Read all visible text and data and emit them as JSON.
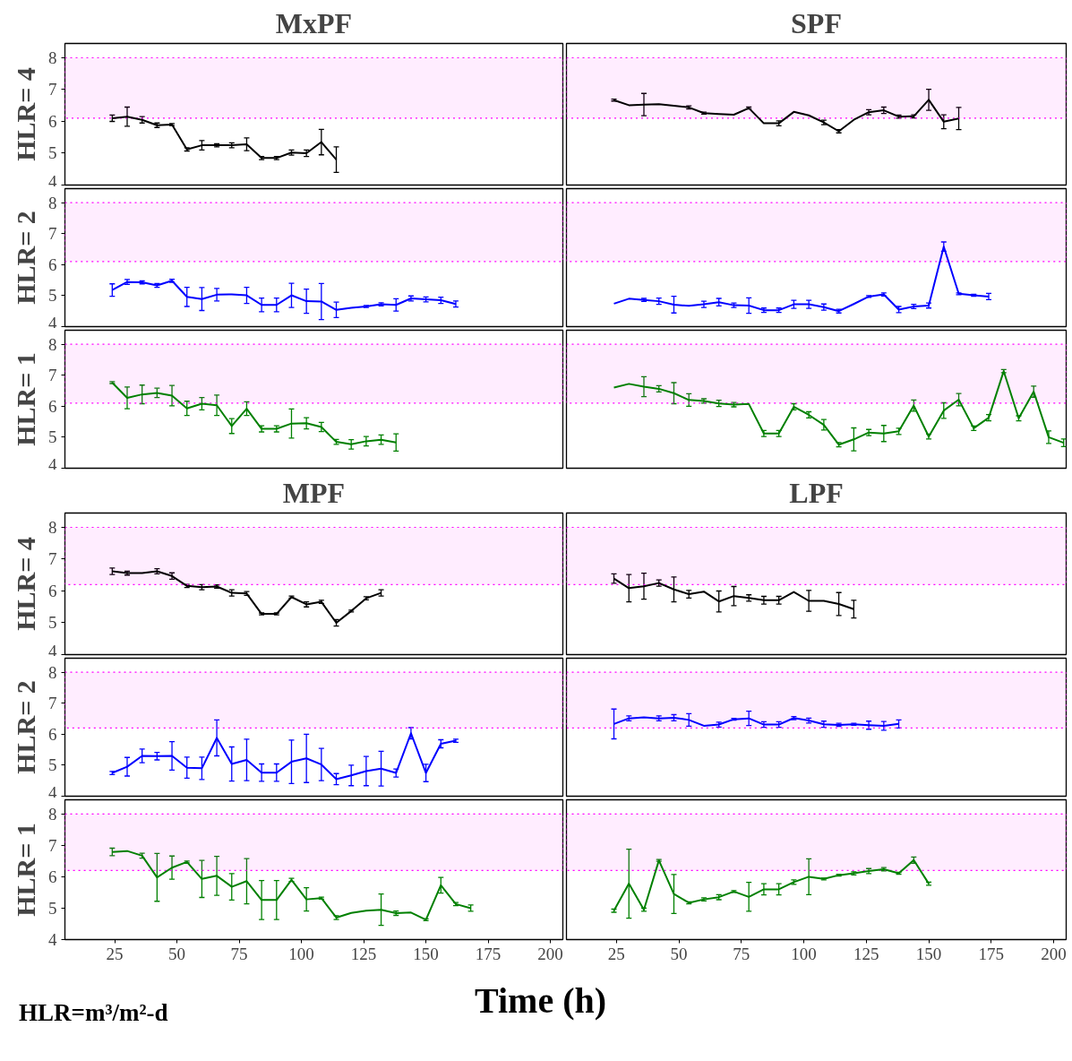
{
  "chart_data": [
    {
      "type": "line",
      "title": "MxPF",
      "ylabel": "HLR= 4",
      "xlim": [
        5,
        205
      ],
      "ylim": [
        4,
        8.45
      ],
      "xticks": [
        25,
        50,
        75,
        100,
        125,
        150,
        175,
        200
      ],
      "yticks": [
        4,
        5,
        6,
        7,
        8
      ],
      "tick_labels": "y",
      "bands": [
        {
          "axis": "y",
          "from": 6.1,
          "to": 8,
          "color": "#ff00ff"
        }
      ],
      "x": [
        24,
        30,
        36,
        42,
        48,
        54,
        60,
        66,
        72,
        78,
        84,
        90,
        96,
        102,
        108,
        114
      ],
      "series": [
        {
          "color": "#000000",
          "values": [
            6.1,
            6.15,
            6.05,
            5.88,
            5.9,
            5.12,
            5.25,
            5.25,
            5.25,
            5.28,
            4.85,
            4.85,
            5.02,
            5.0,
            5.35,
            4.8
          ],
          "errors": [
            0.1,
            0.3,
            0.1,
            0.07,
            0.03,
            0.05,
            0.15,
            0.05,
            0.08,
            0.2,
            0.05,
            0.05,
            0.08,
            0.1,
            0.4,
            0.4
          ]
        }
      ]
    },
    {
      "type": "line",
      "title": "SPF",
      "xlim": [
        5,
        205
      ],
      "ylim": [
        4,
        8.45
      ],
      "xticks": [
        25,
        50,
        75,
        100,
        125,
        150,
        175,
        200
      ],
      "yticks": [
        4,
        5,
        6,
        7,
        8
      ],
      "tick_labels": false,
      "bands": [
        {
          "axis": "y",
          "from": 6.1,
          "to": 8,
          "color": "#ff00ff"
        }
      ],
      "x": [
        24,
        30,
        36,
        42,
        48,
        54,
        60,
        66,
        72,
        78,
        84,
        90,
        96,
        102,
        108,
        114,
        120,
        126,
        132,
        138,
        144,
        150,
        156,
        162
      ],
      "series": [
        {
          "color": "#000000",
          "values": [
            6.67,
            6.51,
            6.53,
            6.54,
            6.49,
            6.44,
            6.26,
            6.23,
            6.21,
            6.42,
            5.94,
            5.94,
            6.3,
            6.19,
            5.97,
            5.69,
            6.05,
            6.29,
            6.35,
            6.15,
            6.16,
            6.68,
            5.99,
            6.09
          ],
          "errors": [
            0.03,
            null,
            0.35,
            null,
            null,
            0.05,
            0.03,
            null,
            null,
            0.03,
            null,
            0.08,
            null,
            null,
            0.07,
            0.05,
            null,
            0.08,
            0.1,
            0.05,
            0.05,
            0.33,
            0.22,
            0.35
          ]
        }
      ]
    },
    {
      "type": "line",
      "ylabel": "HLR= 2",
      "xlim": [
        5,
        205
      ],
      "ylim": [
        4,
        8.45
      ],
      "xticks": [
        25,
        50,
        75,
        100,
        125,
        150,
        175,
        200
      ],
      "yticks": [
        4,
        5,
        6,
        7,
        8
      ],
      "tick_labels": "y",
      "bands": [
        {
          "axis": "y",
          "from": 6.1,
          "to": 8,
          "color": "#ff00ff"
        }
      ],
      "x": [
        24,
        30,
        36,
        42,
        48,
        54,
        60,
        66,
        72,
        78,
        84,
        90,
        96,
        102,
        108,
        114,
        120,
        126,
        132,
        138,
        144,
        150,
        156,
        162
      ],
      "series": [
        {
          "color": "#0000ff",
          "values": [
            5.18,
            5.44,
            5.43,
            5.33,
            5.48,
            4.96,
            4.89,
            5.03,
            5.04,
            5.01,
            4.7,
            4.7,
            5.01,
            4.82,
            4.81,
            4.54,
            4.61,
            4.65,
            4.72,
            4.7,
            4.91,
            4.88,
            4.85,
            4.73
          ],
          "errors": [
            0.2,
            0.08,
            0.05,
            0.06,
            0.05,
            0.31,
            0.37,
            0.2,
            null,
            0.26,
            0.22,
            0.22,
            0.39,
            0.39,
            0.58,
            0.25,
            null,
            0.03,
            0.05,
            0.2,
            0.08,
            0.08,
            0.1,
            0.1
          ]
        }
      ]
    },
    {
      "type": "line",
      "xlim": [
        5,
        205
      ],
      "ylim": [
        4,
        8.45
      ],
      "xticks": [
        25,
        50,
        75,
        100,
        125,
        150,
        175,
        200
      ],
      "yticks": [
        4,
        5,
        6,
        7,
        8
      ],
      "tick_labels": false,
      "bands": [
        {
          "axis": "y",
          "from": 6.1,
          "to": 8,
          "color": "#ff00ff"
        }
      ],
      "x": [
        24,
        30,
        36,
        42,
        48,
        54,
        60,
        66,
        72,
        78,
        84,
        90,
        96,
        102,
        108,
        114,
        120,
        126,
        132,
        138,
        144,
        150,
        156,
        162,
        168,
        174
      ],
      "series": [
        {
          "color": "#0000ff",
          "values": [
            4.74,
            4.9,
            4.86,
            4.82,
            4.71,
            4.67,
            4.72,
            4.79,
            4.69,
            4.68,
            4.53,
            4.53,
            4.72,
            4.72,
            4.63,
            4.5,
            4.73,
            4.97,
            5.04,
            4.55,
            4.65,
            4.68,
            6.58,
            5.06,
            5.01,
            4.97
          ],
          "errors": [
            null,
            null,
            0.05,
            0.1,
            0.27,
            null,
            0.1,
            0.12,
            0.07,
            0.25,
            0.07,
            0.07,
            0.13,
            0.13,
            0.1,
            0.06,
            null,
            0.03,
            0.05,
            0.1,
            0.07,
            0.08,
            0.15,
            0.03,
            0.03,
            0.1
          ]
        }
      ]
    },
    {
      "type": "line",
      "ylabel": "HLR= 1",
      "xlim": [
        5,
        205
      ],
      "ylim": [
        4,
        8.45
      ],
      "xticks": [
        25,
        50,
        75,
        100,
        125,
        150,
        175,
        200
      ],
      "yticks": [
        4,
        5,
        6,
        7,
        8
      ],
      "tick_labels": "y",
      "bands": [
        {
          "axis": "y",
          "from": 6.1,
          "to": 8,
          "color": "#ff00ff"
        }
      ],
      "x": [
        24,
        30,
        36,
        42,
        48,
        54,
        60,
        66,
        72,
        78,
        84,
        90,
        96,
        102,
        108,
        114,
        120,
        126,
        132,
        138
      ],
      "series": [
        {
          "color": "#008000",
          "values": [
            6.76,
            6.27,
            6.38,
            6.43,
            6.34,
            5.93,
            6.08,
            6.03,
            5.36,
            5.92,
            5.27,
            5.27,
            5.44,
            5.45,
            5.33,
            4.85,
            4.77,
            4.87,
            4.92,
            4.83
          ],
          "errors": [
            0.03,
            0.35,
            0.3,
            0.15,
            0.33,
            0.23,
            0.2,
            0.33,
            0.24,
            0.22,
            0.1,
            0.1,
            0.47,
            0.18,
            0.15,
            0.08,
            0.15,
            0.15,
            0.15,
            0.28
          ]
        }
      ]
    },
    {
      "type": "line",
      "xlim": [
        5,
        205
      ],
      "ylim": [
        4,
        8.45
      ],
      "xticks": [
        25,
        50,
        75,
        100,
        125,
        150,
        175,
        200
      ],
      "yticks": [
        4,
        5,
        6,
        7,
        8
      ],
      "tick_labels": false,
      "bands": [
        {
          "axis": "y",
          "from": 6.1,
          "to": 8,
          "color": "#ff00ff"
        }
      ],
      "x": [
        24,
        30,
        36,
        42,
        48,
        54,
        60,
        66,
        72,
        78,
        84,
        90,
        96,
        102,
        108,
        114,
        120,
        126,
        132,
        138,
        144,
        150,
        156,
        162,
        168,
        174,
        180,
        186,
        192,
        198,
        204
      ],
      "series": [
        {
          "color": "#008000",
          "values": [
            6.6,
            6.72,
            6.63,
            6.56,
            6.42,
            6.2,
            6.17,
            6.09,
            6.05,
            6.07,
            5.12,
            5.12,
            5.98,
            5.72,
            5.4,
            4.76,
            4.93,
            5.15,
            5.12,
            5.19,
            6.02,
            5.02,
            5.86,
            6.21,
            5.29,
            5.63,
            7.13,
            5.61,
            6.47,
            5.0,
            4.82
          ],
          "errors": [
            null,
            null,
            0.32,
            0.1,
            0.34,
            0.2,
            0.07,
            0.1,
            0.07,
            null,
            0.1,
            0.1,
            0.1,
            0.1,
            0.17,
            0.07,
            0.37,
            0.1,
            0.26,
            0.1,
            0.18,
            0.08,
            0.25,
            0.2,
            0.07,
            0.1,
            0.05,
            0.08,
            0.18,
            0.2,
            0.12
          ]
        }
      ]
    },
    {
      "type": "line",
      "title": "MPF",
      "ylabel": "HLR= 4",
      "xlim": [
        5,
        205
      ],
      "ylim": [
        4,
        8.45
      ],
      "xticks": [
        25,
        50,
        75,
        100,
        125,
        150,
        175,
        200
      ],
      "yticks": [
        4,
        5,
        6,
        7,
        8
      ],
      "tick_labels": "y",
      "bands": [
        {
          "axis": "y",
          "from": 6.2,
          "to": 8,
          "color": "#ff00ff"
        }
      ],
      "x": [
        24,
        30,
        36,
        42,
        48,
        54,
        60,
        66,
        72,
        78,
        84,
        90,
        96,
        102,
        108,
        114,
        120,
        126,
        132
      ],
      "series": [
        {
          "color": "#000000",
          "values": [
            6.62,
            6.56,
            6.56,
            6.62,
            6.47,
            6.16,
            6.12,
            6.14,
            5.94,
            5.92,
            5.28,
            5.28,
            5.81,
            5.58,
            5.66,
            5.0,
            5.37,
            5.77,
            5.94
          ],
          "errors": [
            0.1,
            0.06,
            null,
            0.08,
            0.1,
            0.05,
            0.08,
            0.05,
            0.1,
            0.06,
            0.03,
            0.03,
            0.03,
            0.08,
            0.05,
            0.1,
            0.03,
            0.05,
            0.1
          ]
        }
      ]
    },
    {
      "type": "line",
      "title": "LPF",
      "xlim": [
        5,
        205
      ],
      "ylim": [
        4,
        8.45
      ],
      "xticks": [
        25,
        50,
        75,
        100,
        125,
        150,
        175,
        200
      ],
      "yticks": [
        4,
        5,
        6,
        7,
        8
      ],
      "tick_labels": false,
      "bands": [
        {
          "axis": "y",
          "from": 6.2,
          "to": 8,
          "color": "#ff00ff"
        }
      ],
      "x": [
        24,
        30,
        36,
        42,
        48,
        54,
        60,
        66,
        72,
        78,
        84,
        90,
        96,
        102,
        108,
        114,
        120
      ],
      "series": [
        {
          "color": "#000000",
          "values": [
            6.39,
            6.09,
            6.15,
            6.25,
            6.05,
            5.9,
            5.98,
            5.67,
            5.84,
            5.78,
            5.71,
            5.71,
            5.97,
            5.69,
            5.69,
            5.59,
            5.43
          ],
          "errors": [
            0.15,
            0.43,
            0.41,
            0.1,
            0.39,
            0.12,
            null,
            0.33,
            0.3,
            0.1,
            0.12,
            0.12,
            null,
            0.33,
            null,
            0.36,
            0.28
          ]
        }
      ]
    },
    {
      "type": "line",
      "ylabel": "HLR= 2",
      "xlim": [
        5,
        205
      ],
      "ylim": [
        4,
        8.45
      ],
      "xticks": [
        25,
        50,
        75,
        100,
        125,
        150,
        175,
        200
      ],
      "yticks": [
        4,
        5,
        6,
        7,
        8
      ],
      "tick_labels": "y",
      "bands": [
        {
          "axis": "y",
          "from": 6.2,
          "to": 8,
          "color": "#ff00ff"
        }
      ],
      "x": [
        24,
        30,
        36,
        42,
        48,
        54,
        60,
        66,
        72,
        78,
        84,
        90,
        96,
        102,
        108,
        114,
        120,
        126,
        132,
        138,
        144,
        150,
        156,
        162
      ],
      "series": [
        {
          "color": "#0000ff",
          "values": [
            4.75,
            4.95,
            5.3,
            5.29,
            5.3,
            4.92,
            4.9,
            5.88,
            5.04,
            5.17,
            4.76,
            4.76,
            5.11,
            5.22,
            5.02,
            4.55,
            4.67,
            4.81,
            4.89,
            4.75,
            6.03,
            4.75,
            5.69,
            5.79
          ],
          "errors": [
            0.05,
            0.3,
            0.22,
            0.12,
            0.46,
            0.34,
            0.36,
            0.58,
            0.55,
            0.67,
            0.28,
            0.28,
            0.7,
            0.78,
            0.52,
            0.18,
            0.33,
            0.47,
            0.56,
            0.13,
            0.18,
            0.28,
            0.13,
            0.05
          ]
        }
      ]
    },
    {
      "type": "line",
      "xlim": [
        5,
        205
      ],
      "ylim": [
        4,
        8.45
      ],
      "xticks": [
        25,
        50,
        75,
        100,
        125,
        150,
        175,
        200
      ],
      "yticks": [
        4,
        5,
        6,
        7,
        8
      ],
      "tick_labels": false,
      "bands": [
        {
          "axis": "y",
          "from": 6.2,
          "to": 8,
          "color": "#ff00ff"
        }
      ],
      "x": [
        24,
        30,
        36,
        42,
        48,
        54,
        60,
        66,
        72,
        78,
        84,
        90,
        96,
        102,
        108,
        114,
        120,
        126,
        132,
        138
      ],
      "series": [
        {
          "color": "#0000ff",
          "values": [
            6.33,
            6.51,
            6.54,
            6.51,
            6.53,
            6.46,
            6.27,
            6.31,
            6.48,
            6.51,
            6.31,
            6.31,
            6.52,
            6.44,
            6.32,
            6.3,
            6.32,
            6.29,
            6.27,
            6.33
          ],
          "errors": [
            0.48,
            0.08,
            null,
            0.08,
            0.1,
            0.2,
            null,
            0.08,
            0.03,
            0.23,
            0.09,
            0.09,
            0.05,
            0.08,
            0.1,
            0.05,
            0.03,
            0.13,
            0.14,
            0.13
          ]
        }
      ]
    },
    {
      "type": "line",
      "ylabel": "HLR= 1",
      "xlabel": "Time (h)",
      "annotations": [
        "HLR=m³/m²-d"
      ],
      "xlim": [
        5,
        205
      ],
      "ylim": [
        4,
        8.45
      ],
      "xticks": [
        25,
        50,
        75,
        100,
        125,
        150,
        175,
        200
      ],
      "yticks": [
        4,
        5,
        6,
        7,
        8
      ],
      "bands": [
        {
          "axis": "y",
          "from": 6.2,
          "to": 8,
          "color": "#ff00ff"
        }
      ],
      "x": [
        24,
        30,
        36,
        42,
        48,
        54,
        60,
        66,
        72,
        78,
        84,
        90,
        96,
        102,
        108,
        114,
        120,
        126,
        132,
        138,
        144,
        150,
        156,
        162,
        168
      ],
      "series": [
        {
          "color": "#008000",
          "values": [
            6.79,
            6.82,
            6.67,
            5.98,
            6.29,
            6.47,
            5.93,
            6.03,
            5.68,
            5.86,
            5.26,
            5.26,
            5.9,
            5.28,
            5.32,
            4.7,
            4.85,
            4.92,
            4.95,
            4.84,
            4.86,
            4.63,
            5.73,
            5.13,
            5.0
          ],
          "errors": [
            0.12,
            null,
            0.08,
            0.76,
            0.37,
            0.03,
            0.59,
            0.62,
            0.42,
            0.72,
            0.62,
            0.62,
            0.05,
            0.37,
            0.03,
            0.06,
            null,
            null,
            0.5,
            0.07,
            null,
            0.03,
            0.25,
            0.05,
            0.1
          ]
        }
      ]
    },
    {
      "type": "line",
      "xlim": [
        5,
        205
      ],
      "ylim": [
        4,
        8.45
      ],
      "xticks": [
        25,
        50,
        75,
        100,
        125,
        150,
        175,
        200
      ],
      "yticks": [
        4,
        5,
        6,
        7,
        8
      ],
      "tick_labels": "x",
      "bands": [
        {
          "axis": "y",
          "from": 6.2,
          "to": 8,
          "color": "#ff00ff"
        }
      ],
      "x": [
        24,
        30,
        36,
        42,
        48,
        54,
        60,
        66,
        72,
        78,
        84,
        90,
        96,
        102,
        108,
        114,
        120,
        126,
        132,
        138,
        144,
        150
      ],
      "series": [
        {
          "color": "#008000",
          "values": [
            4.92,
            5.78,
            4.95,
            6.52,
            5.45,
            5.17,
            5.28,
            5.35,
            5.53,
            5.36,
            5.6,
            5.6,
            5.83,
            6.0,
            5.93,
            6.05,
            6.11,
            6.18,
            6.24,
            6.11,
            6.53,
            5.78
          ],
          "errors": [
            0.05,
            1.1,
            0.05,
            0.03,
            0.62,
            0.03,
            0.05,
            0.08,
            0.03,
            0.46,
            0.18,
            0.18,
            0.07,
            0.57,
            0.03,
            0.03,
            0.05,
            0.08,
            0.05,
            0.03,
            0.1,
            0.05
          ]
        }
      ]
    }
  ]
}
